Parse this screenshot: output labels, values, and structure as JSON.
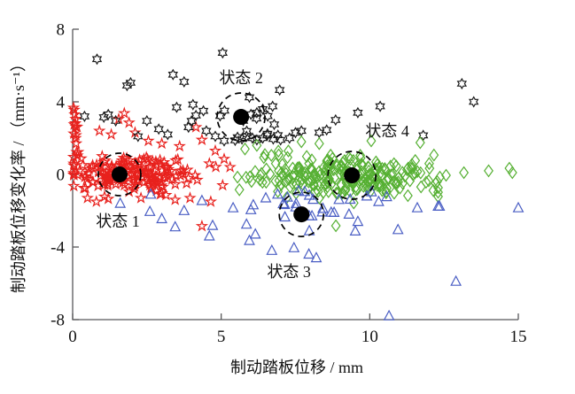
{
  "chart_data": {
    "type": "scatter",
    "title": "",
    "xlabel": "制动踏板位移 / mm",
    "ylabel": "制动踏板位移变化率 / （mm·s⁻¹）",
    "xlim": [
      0,
      15
    ],
    "ylim": [
      -8,
      8
    ],
    "xticks": [
      0,
      5,
      10,
      15
    ],
    "yticks": [
      -8,
      -4,
      0,
      4,
      8
    ],
    "grid": false,
    "legend": "none",
    "axis_color": "#58585a",
    "centroid_color": "#000000",
    "series": [
      {
        "id": "state1",
        "label": "状态 1",
        "marker": "star5",
        "color": "#e8211d",
        "centroid": [
          1.58,
          0.0
        ],
        "ring_r": 24,
        "core": [
          {
            "count": 115,
            "cx": 1.45,
            "cy": 0.05,
            "sx": 0.85,
            "sy": 0.48,
            "xmin": 0.04
          },
          {
            "count": 40,
            "cx": 3.2,
            "cy": 0.08,
            "sx": 0.95,
            "sy": 0.42,
            "xmin": 0.1
          },
          {
            "count": 12,
            "cx": 0.1,
            "cy": 1.8,
            "sx": 0.07,
            "sy": 0.9,
            "xmin": 0.03
          }
        ],
        "points": [
          [
            0.05,
            3.55
          ],
          [
            0.07,
            3.3
          ],
          [
            0.1,
            3.05
          ],
          [
            0.05,
            2.75
          ],
          [
            1.74,
            3.37
          ],
          [
            1.55,
            3.05
          ],
          [
            1.9,
            2.85
          ],
          [
            0.9,
            2.4
          ],
          [
            1.3,
            2.2
          ],
          [
            2.1,
            2.3
          ],
          [
            2.55,
            1.85
          ],
          [
            3.0,
            1.7
          ],
          [
            4.15,
            2.6
          ],
          [
            4.35,
            1.9
          ],
          [
            3.6,
            1.55
          ],
          [
            4.8,
            1.3
          ],
          [
            5.1,
            0.85
          ],
          [
            5.3,
            0.4
          ],
          [
            4.6,
            0.6
          ],
          [
            1.9,
            -0.95
          ],
          [
            2.3,
            -1.3
          ],
          [
            2.65,
            -0.8
          ],
          [
            3.0,
            -1.05
          ],
          [
            3.45,
            -1.4
          ],
          [
            3.95,
            -1.3
          ],
          [
            4.35,
            -2.85
          ],
          [
            4.65,
            -1.5
          ],
          [
            5.05,
            -0.6
          ],
          [
            0.5,
            -1.3
          ],
          [
            0.8,
            -1.5
          ],
          [
            1.2,
            -1.35
          ]
        ]
      },
      {
        "id": "state2",
        "label": "状态 2",
        "marker": "star6",
        "color": "#1a1a1a",
        "centroid": [
          5.67,
          3.17
        ],
        "ring_r": 27,
        "core": [
          {
            "count": 14,
            "cx": 5.6,
            "cy": 2.85,
            "sx": 0.85,
            "sy": 0.5,
            "ymin": 1.6
          }
        ],
        "points": [
          [
            0.82,
            6.35
          ],
          [
            5.05,
            6.7
          ],
          [
            1.83,
            4.9
          ],
          [
            1.95,
            5.05
          ],
          [
            3.38,
            5.5
          ],
          [
            3.75,
            5.1
          ],
          [
            13.1,
            5.0
          ],
          [
            13.5,
            4.0
          ],
          [
            6.97,
            4.65
          ],
          [
            5.95,
            4.25
          ],
          [
            6.73,
            3.75
          ],
          [
            6.2,
            3.4
          ],
          [
            3.5,
            3.7
          ],
          [
            4.05,
            3.85
          ],
          [
            4.15,
            3.25
          ],
          [
            1.2,
            3.3
          ],
          [
            1.05,
            3.15
          ],
          [
            1.45,
            2.95
          ],
          [
            0.4,
            3.2
          ],
          [
            2.5,
            2.95
          ],
          [
            2.9,
            2.5
          ],
          [
            3.2,
            2.2
          ],
          [
            2.2,
            2.1
          ],
          [
            10.35,
            3.75
          ],
          [
            9.6,
            3.4
          ],
          [
            8.85,
            3.0
          ],
          [
            7.7,
            2.4
          ],
          [
            8.3,
            2.3
          ],
          [
            8.55,
            2.45
          ],
          [
            11.8,
            2.15
          ],
          [
            5.55,
            2.05
          ],
          [
            5.7,
            1.95
          ],
          [
            5.85,
            2.1
          ],
          [
            6.05,
            2.0
          ],
          [
            6.2,
            1.9
          ],
          [
            6.4,
            2.0
          ],
          [
            6.55,
            2.15
          ],
          [
            6.75,
            1.95
          ],
          [
            7.0,
            1.9
          ],
          [
            7.3,
            2.0
          ],
          [
            7.5,
            2.3
          ],
          [
            4.5,
            2.4
          ],
          [
            4.8,
            2.1
          ],
          [
            5.1,
            1.85
          ],
          [
            3.9,
            2.6
          ]
        ]
      },
      {
        "id": "state3",
        "label": "状态 3",
        "marker": "triangle",
        "color": "#4a5ec4",
        "centroid": [
          7.7,
          -2.2
        ],
        "ring_r": 25,
        "core": [
          {
            "count": 24,
            "cx": 7.9,
            "cy": -2.0,
            "sx": 1.25,
            "sy": 0.75,
            "ymax": -0.95
          }
        ],
        "points": [
          [
            2.63,
            -1.1
          ],
          [
            1.6,
            -1.6
          ],
          [
            3.0,
            -2.45
          ],
          [
            3.45,
            -2.9
          ],
          [
            3.75,
            -2.0
          ],
          [
            4.35,
            -1.45
          ],
          [
            4.6,
            -3.4
          ],
          [
            5.4,
            -1.85
          ],
          [
            6.0,
            -1.95
          ],
          [
            5.85,
            -2.75
          ],
          [
            6.15,
            -3.3
          ],
          [
            5.95,
            -3.65
          ],
          [
            7.45,
            -4.05
          ],
          [
            7.95,
            -4.4
          ],
          [
            8.8,
            -2.1
          ],
          [
            9.3,
            -2.2
          ],
          [
            9.9,
            -1.2
          ],
          [
            10.3,
            -1.5
          ],
          [
            11.6,
            -1.85
          ],
          [
            12.35,
            -1.76
          ],
          [
            15.0,
            -1.85
          ],
          [
            10.95,
            -3.05
          ],
          [
            12.9,
            -5.9
          ],
          [
            10.65,
            -7.8
          ],
          [
            12.3,
            -1.76
          ],
          [
            2.6,
            -2.05
          ],
          [
            6.5,
            -1.3
          ],
          [
            6.9,
            -1.1
          ],
          [
            7.6,
            -0.9
          ],
          [
            8.2,
            -4.6
          ],
          [
            9.6,
            -2.6
          ]
        ]
      },
      {
        "id": "state4",
        "label": "状态 4",
        "marker": "diamond",
        "color": "#56b033",
        "centroid": [
          9.4,
          -0.05
        ],
        "ring_r": 27,
        "core": [
          {
            "count": 150,
            "cx": 9.35,
            "cy": -0.1,
            "sx": 1.1,
            "sy": 0.52,
            "ymin": -1.65,
            "ymax": 1.8
          },
          {
            "count": 60,
            "cx": 7.0,
            "cy": 0.15,
            "sx": 0.8,
            "sy": 0.55,
            "xmin": 5.55,
            "ymin": -1.5,
            "ymax": 1.7
          },
          {
            "count": 26,
            "cx": 11.2,
            "cy": -0.15,
            "sx": 0.75,
            "sy": 0.45
          }
        ],
        "points": [
          [
            12.16,
            1.07
          ],
          [
            12.57,
            -0.05
          ],
          [
            12.36,
            -0.15
          ],
          [
            13.17,
            0.1
          ],
          [
            14.0,
            0.2
          ],
          [
            14.7,
            0.34
          ],
          [
            14.8,
            0.1
          ],
          [
            12.3,
            -0.73
          ],
          [
            12.3,
            -0.98
          ],
          [
            12.3,
            -1.22
          ],
          [
            8.86,
            -2.83
          ],
          [
            7.7,
            1.8
          ],
          [
            8.3,
            1.7
          ],
          [
            10.05,
            1.85
          ],
          [
            11.7,
            1.75
          ],
          [
            6.2,
            1.6
          ],
          [
            5.8,
            1.4
          ],
          [
            12.0,
            0.6
          ]
        ]
      }
    ],
    "annotations": [
      {
        "text": "状态 1",
        "x": 1.52,
        "y": -2.54
      },
      {
        "text": "状态 2",
        "x": 5.67,
        "y": 5.37
      },
      {
        "text": "状态 3",
        "x": 7.28,
        "y": -5.32
      },
      {
        "text": "状态 4",
        "x": 10.59,
        "y": 2.44
      }
    ]
  }
}
